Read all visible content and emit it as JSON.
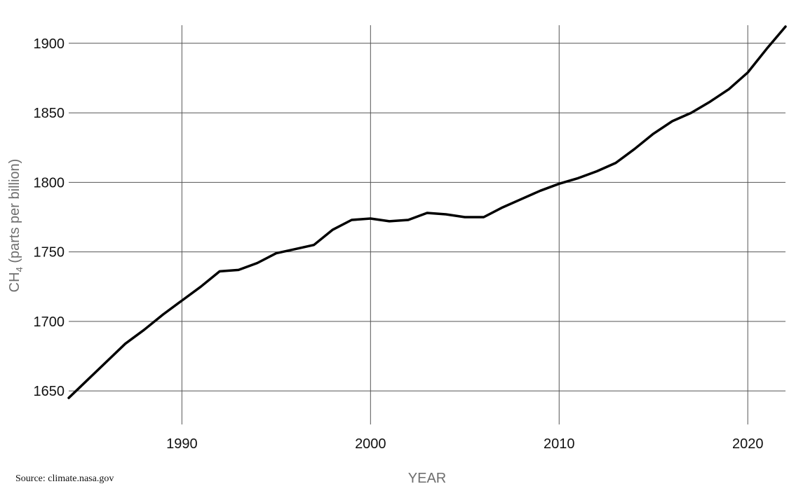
{
  "chart_data": {
    "type": "line",
    "xlabel": "YEAR",
    "ylabel_main": "CH",
    "ylabel_sub": "4",
    "ylabel_rest": " (parts per billion)",
    "xlim": [
      1984,
      2022
    ],
    "ylim": [
      1638,
      1913
    ],
    "xticks": [
      1990,
      2000,
      2010,
      2020
    ],
    "yticks": [
      1650,
      1700,
      1750,
      1800,
      1850,
      1900
    ],
    "grid": true,
    "series": [
      {
        "x": [
          1984,
          1985,
          1986,
          1987,
          1988,
          1989,
          1990,
          1991,
          1992,
          1993,
          1994,
          1995,
          1996,
          1997,
          1998,
          1999,
          2000,
          2001,
          2002,
          2003,
          2004,
          2005,
          2006,
          2007,
          2008,
          2009,
          2010,
          2011,
          2012,
          2013,
          2014,
          2015,
          2016,
          2017,
          2018,
          2019,
          2020,
          2021,
          2022
        ],
        "values": [
          1645,
          1658,
          1671,
          1684,
          1694,
          1705,
          1715,
          1725,
          1736,
          1737,
          1742,
          1749,
          1752,
          1755,
          1766,
          1773,
          1774,
          1772,
          1773,
          1778,
          1777,
          1775,
          1775,
          1782,
          1788,
          1794,
          1799,
          1803,
          1808,
          1814,
          1824,
          1835,
          1844,
          1850,
          1858,
          1867,
          1879,
          1896,
          1912
        ],
        "color": "#000000"
      }
    ]
  },
  "source": "Source: climate.nasa.gov"
}
